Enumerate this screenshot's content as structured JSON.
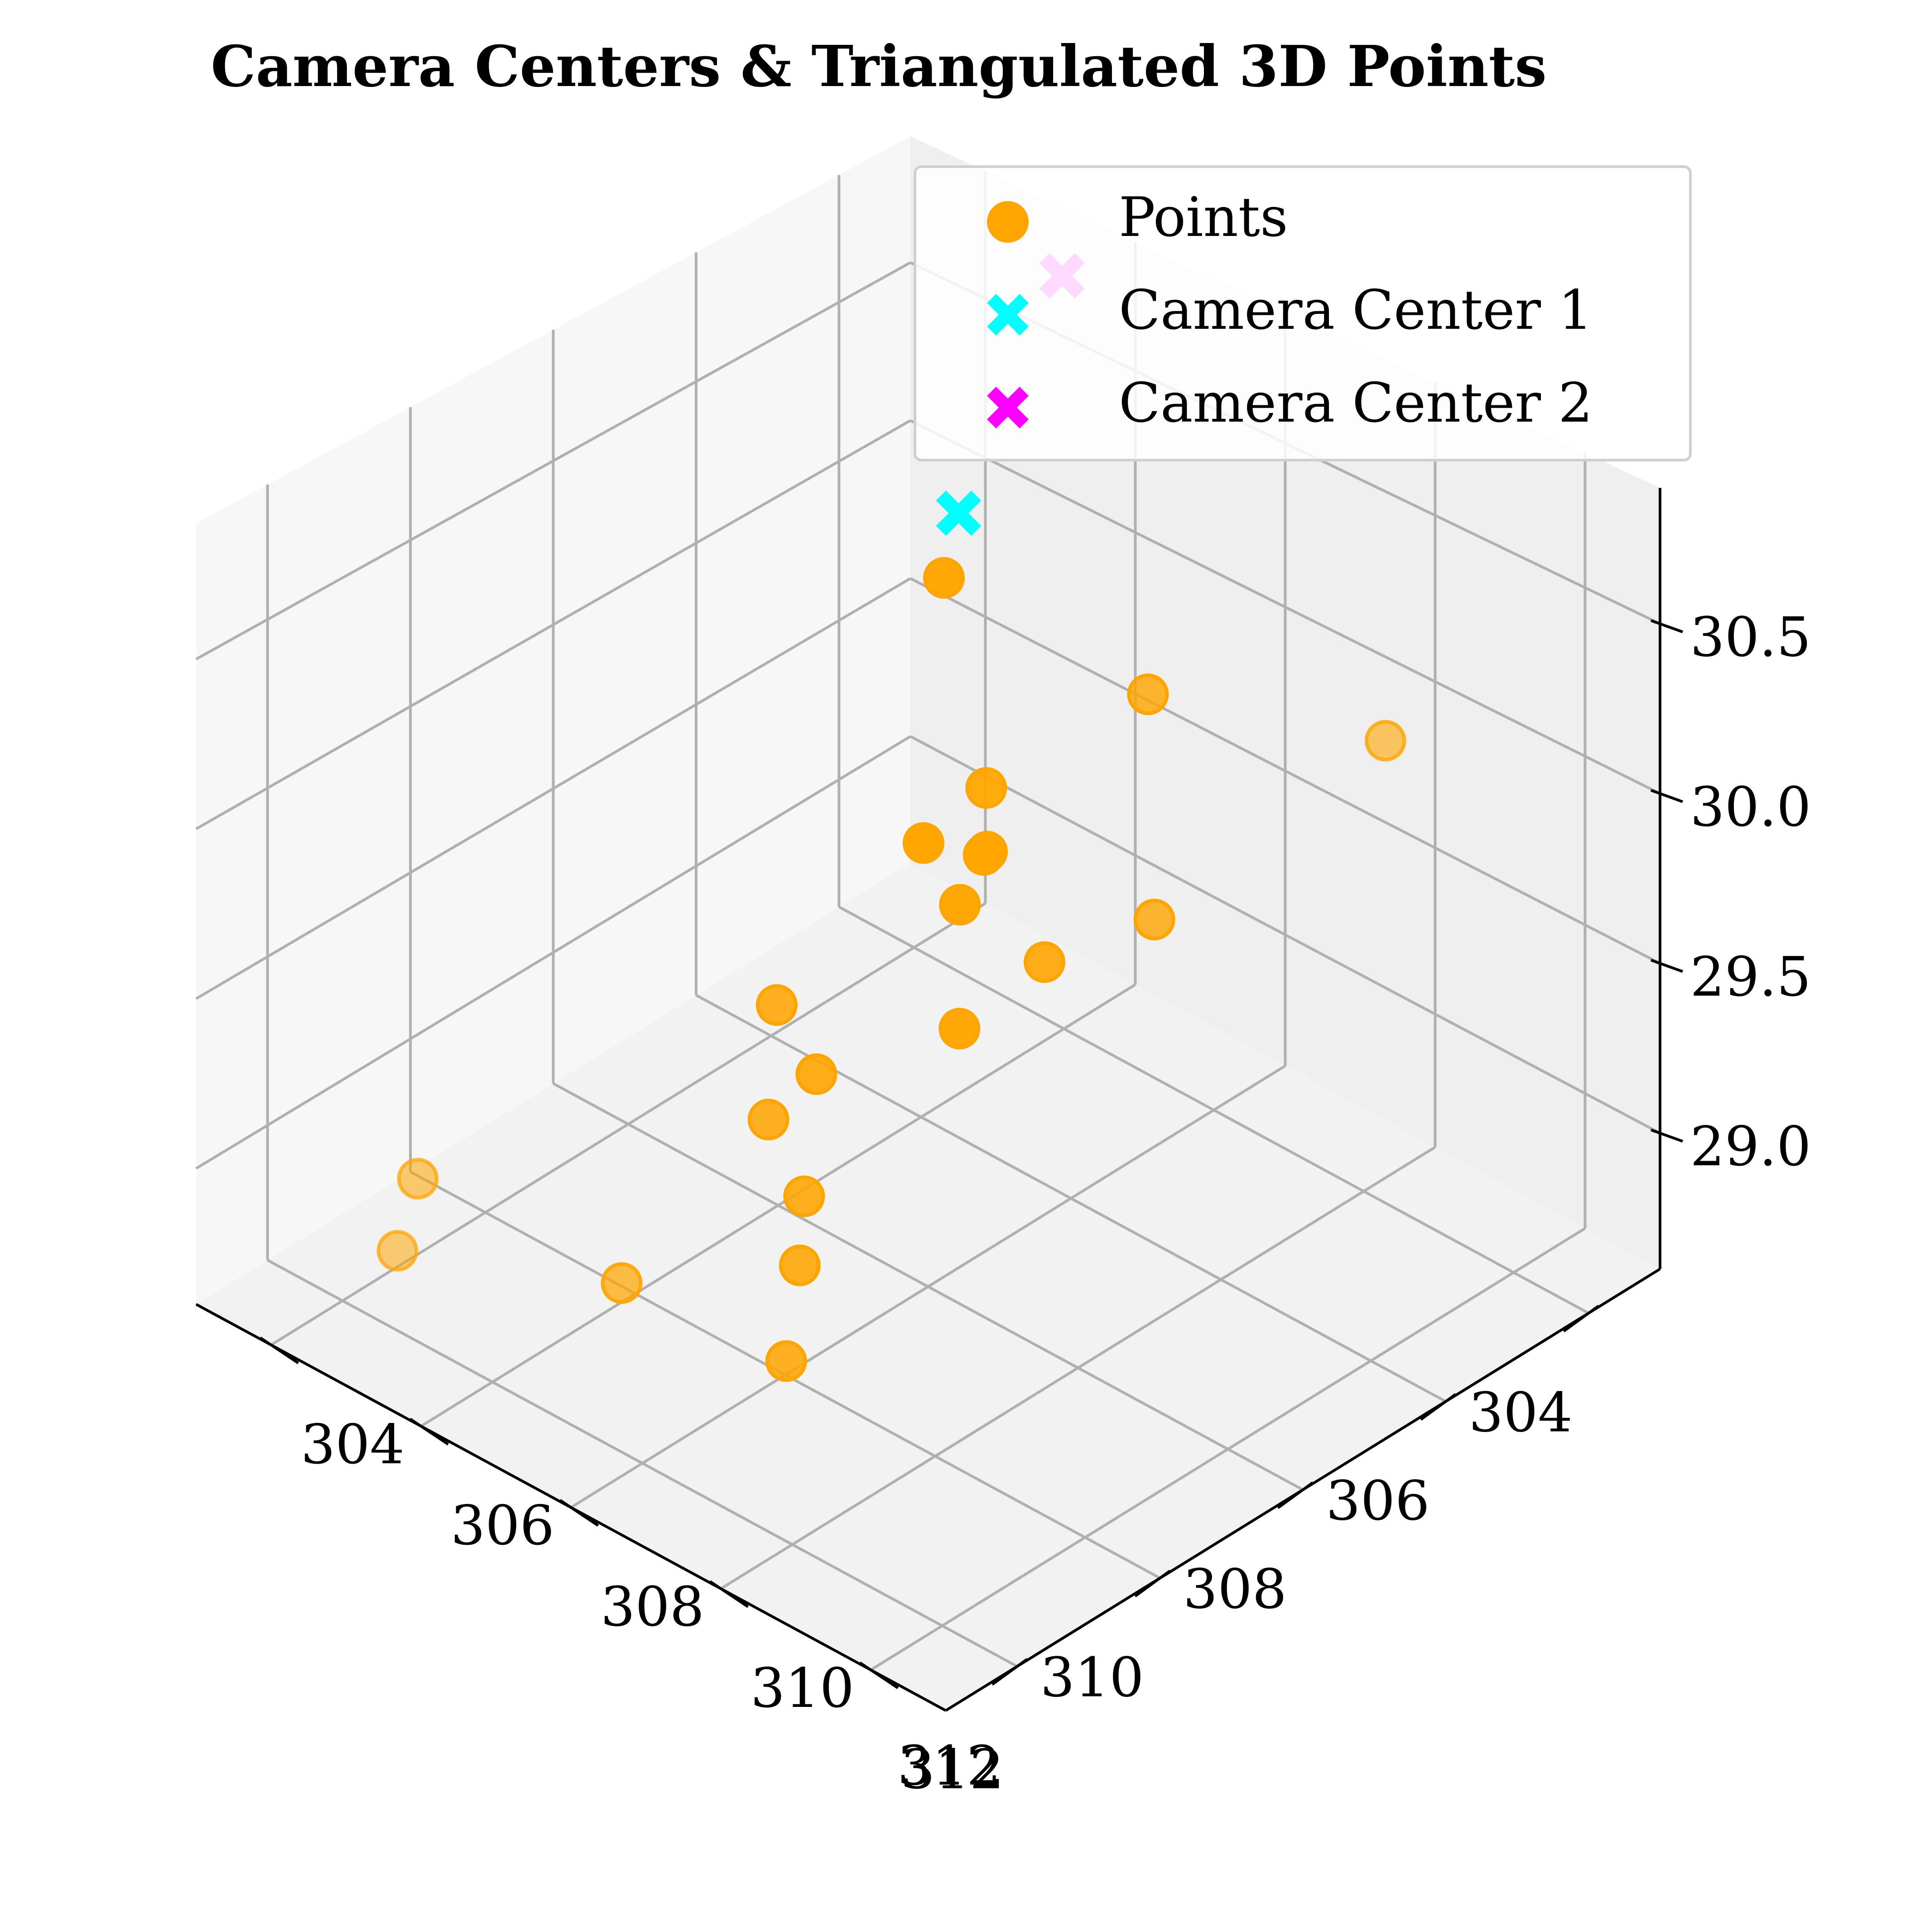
{
  "chart_data": {
    "type": "scatter",
    "title": "Camera Centers & Triangulated 3D Points",
    "xlabel": "",
    "ylabel": "",
    "zlabel": "",
    "xlim": [
      303,
      313
    ],
    "ylim": [
      303,
      313
    ],
    "zlim": [
      28.6,
      30.9
    ],
    "x_ticks": [
      "304",
      "306",
      "308",
      "310",
      "312"
    ],
    "y_ticks": [
      "304",
      "306",
      "308",
      "310",
      "312"
    ],
    "z_ticks": [
      "29.0",
      "29.5",
      "30.0",
      "30.5"
    ],
    "grid": true,
    "legend_position": "top-right",
    "series": [
      {
        "name": "Points",
        "marker": "circle",
        "color": "#FFA500",
        "points": [
          {
            "x": 311.0,
            "y": 311.6,
            "z": 30.6
          },
          {
            "x": 308.4,
            "y": 311.4,
            "z": 30.1
          },
          {
            "x": 308.7,
            "y": 311.6,
            "z": 30.8
          },
          {
            "x": 309.6,
            "y": 310.3,
            "z": 30.5
          },
          {
            "x": 305.9,
            "y": 312.1,
            "z": 30.4
          },
          {
            "x": 307.7,
            "y": 308.5,
            "z": 29.9
          },
          {
            "x": 311.1,
            "y": 309.3,
            "z": 29.4
          },
          {
            "x": 308.4,
            "y": 308.8,
            "z": 29.5
          },
          {
            "x": 307.0,
            "y": 308.6,
            "z": 29.5
          },
          {
            "x": 304.0,
            "y": 304.4,
            "z": 29.8
          },
          {
            "x": 306.7,
            "y": 306.7,
            "z": 29.6
          },
          {
            "x": 306.4,
            "y": 306.9,
            "z": 29.4
          },
          {
            "x": 307.6,
            "y": 305.6,
            "z": 29.1
          },
          {
            "x": 308.2,
            "y": 306.7,
            "z": 29.1
          },
          {
            "x": 309.5,
            "y": 307.3,
            "z": 29.2
          },
          {
            "x": 312.0,
            "y": 310.1,
            "z": 29.4
          },
          {
            "x": 312.4,
            "y": 310.3,
            "z": 29.2
          },
          {
            "x": 312.5,
            "y": 308.2,
            "z": 29.2
          },
          {
            "x": 312.1,
            "y": 305.1,
            "z": 29.1
          },
          {
            "x": 312.7,
            "y": 305.4,
            "z": 29.0
          }
        ]
      },
      {
        "name": "Camera Center 1",
        "marker": "x-filled",
        "color": "#00FFFF",
        "points": [
          {
            "x": 303.9,
            "y": 304.5,
            "z": 30.0
          }
        ]
      },
      {
        "name": "Camera Center 2",
        "marker": "x-filled",
        "color": "#FF00FF",
        "points": [
          {
            "x": 303.5,
            "y": 305.5,
            "z": 30.8
          }
        ]
      }
    ]
  }
}
